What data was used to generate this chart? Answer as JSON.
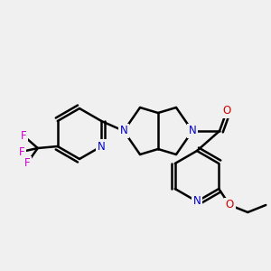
{
  "background_color": "#f0f0f0",
  "bond_color": "#000000",
  "bond_width": 1.8,
  "atom_colors": {
    "N": "#0000cc",
    "O": "#cc0000",
    "F": "#cc00cc",
    "C": "#000000"
  },
  "font_size_atom": 8.5,
  "fig_width": 3.0,
  "fig_height": 3.0,
  "dpi": 100
}
